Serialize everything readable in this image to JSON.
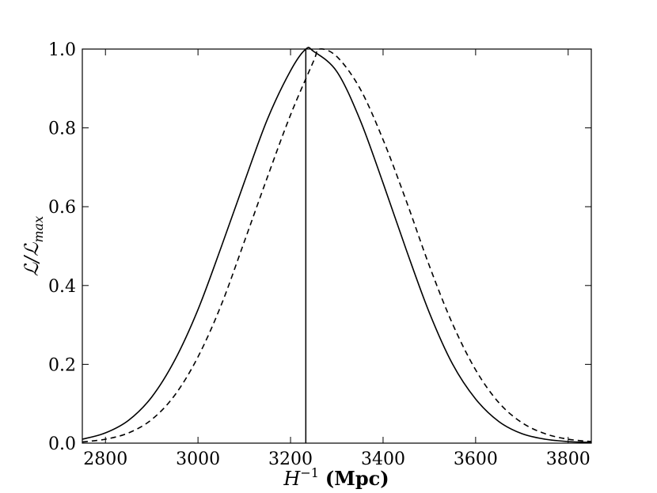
{
  "chart_data": {
    "type": "line",
    "xlabel_main": "H",
    "xlabel_sup": "−1",
    "xlabel_unit": "(Mpc)",
    "ylabel_main": "ℒ/ℒ",
    "ylabel_sub": "max",
    "xlim": [
      2750,
      3850
    ],
    "ylim": [
      0.0,
      1.0
    ],
    "xticks": [
      2800,
      3000,
      3200,
      3400,
      3600,
      3800
    ],
    "yticks": [
      0.0,
      0.2,
      0.4,
      0.6,
      0.8,
      1.0
    ],
    "xtick_labels": [
      "2800",
      "3000",
      "3200",
      "3400",
      "3600",
      "3800"
    ],
    "ytick_labels": [
      "0.0",
      "0.2",
      "0.4",
      "0.6",
      "0.8",
      "1.0"
    ],
    "vline_x": 3233,
    "series": [
      {
        "style": "solid",
        "color": "#000000",
        "x": [
          2750,
          2800,
          2850,
          2900,
          2950,
          3000,
          3050,
          3100,
          3150,
          3200,
          3233,
          3250,
          3300,
          3350,
          3400,
          3450,
          3500,
          3550,
          3600,
          3650,
          3700,
          3750,
          3800,
          3850
        ],
        "y": [
          0.01,
          0.026,
          0.058,
          0.117,
          0.211,
          0.339,
          0.497,
          0.662,
          0.822,
          0.945,
          1.0,
          0.994,
          0.943,
          0.821,
          0.66,
          0.491,
          0.331,
          0.201,
          0.112,
          0.055,
          0.024,
          0.01,
          0.004,
          0.002
        ]
      },
      {
        "style": "dashed",
        "color": "#000000",
        "x": [
          2750,
          2800,
          2850,
          2900,
          2950,
          3000,
          3050,
          3100,
          3150,
          3200,
          3250,
          3262,
          3300,
          3350,
          3400,
          3450,
          3500,
          3550,
          3600,
          3650,
          3700,
          3750,
          3800,
          3850
        ],
        "y": [
          0.003,
          0.01,
          0.026,
          0.06,
          0.122,
          0.219,
          0.35,
          0.511,
          0.675,
          0.833,
          0.97,
          1.0,
          0.981,
          0.9,
          0.77,
          0.615,
          0.45,
          0.303,
          0.186,
          0.103,
          0.052,
          0.024,
          0.01,
          0.004
        ]
      }
    ]
  }
}
